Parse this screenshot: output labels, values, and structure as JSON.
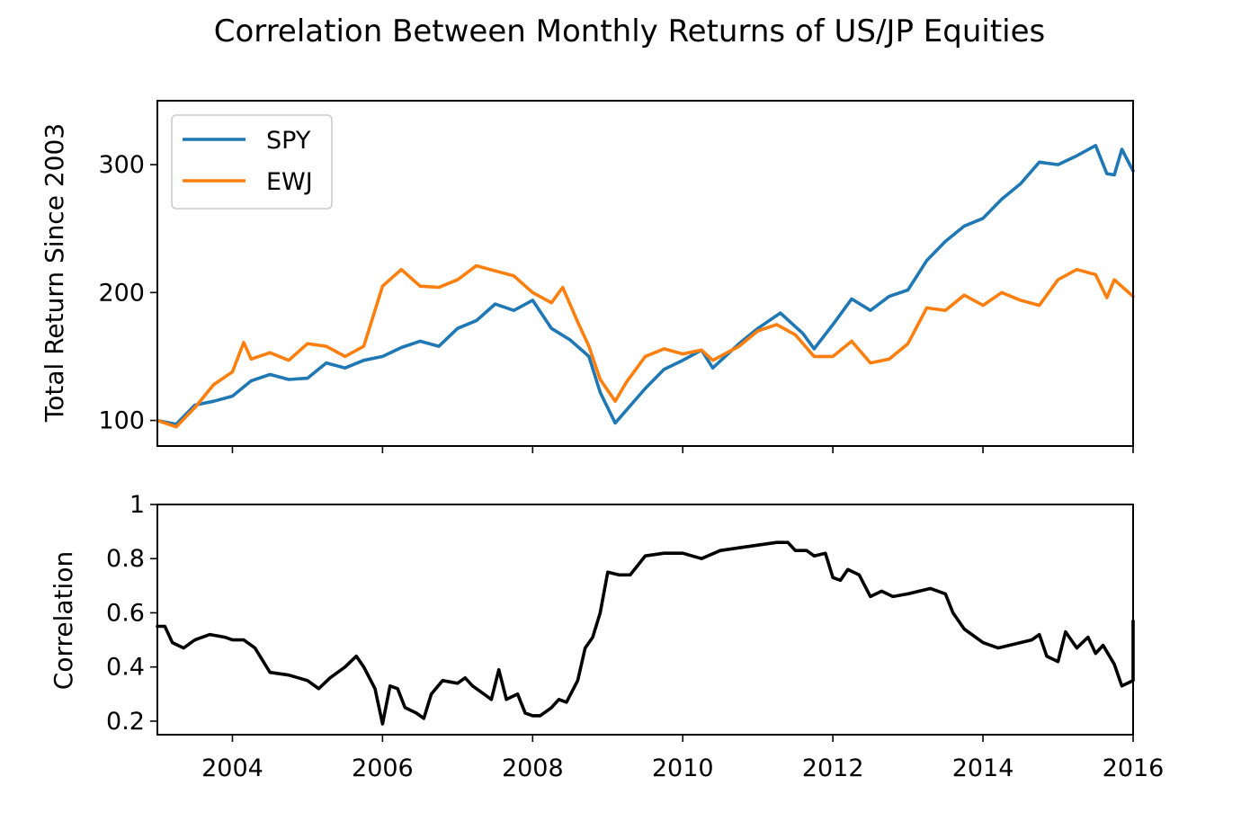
{
  "figure": {
    "title": "Correlation Between Monthly Returns of US/JP Equities"
  },
  "chart_data": [
    {
      "type": "line",
      "ylabel": "Total Return Since 2003",
      "xlabel": "",
      "xlim": [
        2003.0,
        2016.0
      ],
      "ylim": [
        80,
        350
      ],
      "yticks": [
        100,
        200,
        300
      ],
      "grid": false,
      "legend": {
        "placement": "top-left",
        "entries": [
          "SPY",
          "EWJ"
        ]
      },
      "series": [
        {
          "name": "SPY",
          "color": "#1f77b4",
          "points": [
            [
              2003.0,
              100
            ],
            [
              2003.25,
              97
            ],
            [
              2003.5,
              112
            ],
            [
              2003.75,
              115
            ],
            [
              2004.0,
              119
            ],
            [
              2004.25,
              131
            ],
            [
              2004.5,
              136
            ],
            [
              2004.75,
              132
            ],
            [
              2005.0,
              133
            ],
            [
              2005.25,
              145
            ],
            [
              2005.5,
              141
            ],
            [
              2005.75,
              147
            ],
            [
              2006.0,
              150
            ],
            [
              2006.25,
              157
            ],
            [
              2006.5,
              162
            ],
            [
              2006.75,
              158
            ],
            [
              2007.0,
              172
            ],
            [
              2007.25,
              178
            ],
            [
              2007.5,
              191
            ],
            [
              2007.75,
              186
            ],
            [
              2008.0,
              194
            ],
            [
              2008.25,
              172
            ],
            [
              2008.5,
              163
            ],
            [
              2008.75,
              150
            ],
            [
              2008.9,
              122
            ],
            [
              2009.1,
              98
            ],
            [
              2009.5,
              125
            ],
            [
              2009.75,
              140
            ],
            [
              2010.0,
              147
            ],
            [
              2010.25,
              155
            ],
            [
              2010.4,
              141
            ],
            [
              2010.75,
              160
            ],
            [
              2011.0,
              172
            ],
            [
              2011.3,
              184
            ],
            [
              2011.6,
              168
            ],
            [
              2011.75,
              156
            ],
            [
              2012.0,
              175
            ],
            [
              2012.25,
              195
            ],
            [
              2012.5,
              186
            ],
            [
              2012.75,
              197
            ],
            [
              2013.0,
              202
            ],
            [
              2013.25,
              225
            ],
            [
              2013.5,
              240
            ],
            [
              2013.75,
              252
            ],
            [
              2014.0,
              258
            ],
            [
              2014.25,
              273
            ],
            [
              2014.5,
              285
            ],
            [
              2014.75,
              302
            ],
            [
              2015.0,
              300
            ],
            [
              2015.25,
              307
            ],
            [
              2015.5,
              315
            ],
            [
              2015.65,
              293
            ],
            [
              2015.75,
              292
            ],
            [
              2015.85,
              312
            ],
            [
              2016.0,
              295
            ]
          ]
        },
        {
          "name": "EWJ",
          "color": "#ff7f0e",
          "points": [
            [
              2003.0,
              100
            ],
            [
              2003.25,
              95
            ],
            [
              2003.5,
              110
            ],
            [
              2003.75,
              128
            ],
            [
              2004.0,
              138
            ],
            [
              2004.15,
              161
            ],
            [
              2004.25,
              148
            ],
            [
              2004.5,
              153
            ],
            [
              2004.75,
              147
            ],
            [
              2005.0,
              160
            ],
            [
              2005.25,
              158
            ],
            [
              2005.5,
              150
            ],
            [
              2005.75,
              158
            ],
            [
              2006.0,
              205
            ],
            [
              2006.25,
              218
            ],
            [
              2006.5,
              205
            ],
            [
              2006.75,
              204
            ],
            [
              2007.0,
              210
            ],
            [
              2007.25,
              221
            ],
            [
              2007.5,
              217
            ],
            [
              2007.75,
              213
            ],
            [
              2008.0,
              200
            ],
            [
              2008.25,
              192
            ],
            [
              2008.4,
              204
            ],
            [
              2008.6,
              177
            ],
            [
              2008.75,
              158
            ],
            [
              2008.9,
              132
            ],
            [
              2009.1,
              115
            ],
            [
              2009.25,
              130
            ],
            [
              2009.5,
              150
            ],
            [
              2009.75,
              156
            ],
            [
              2010.0,
              152
            ],
            [
              2010.25,
              155
            ],
            [
              2010.4,
              147
            ],
            [
              2010.75,
              158
            ],
            [
              2011.0,
              170
            ],
            [
              2011.25,
              175
            ],
            [
              2011.5,
              167
            ],
            [
              2011.75,
              150
            ],
            [
              2012.0,
              150
            ],
            [
              2012.25,
              162
            ],
            [
              2012.5,
              145
            ],
            [
              2012.75,
              148
            ],
            [
              2013.0,
              160
            ],
            [
              2013.25,
              188
            ],
            [
              2013.5,
              186
            ],
            [
              2013.75,
              198
            ],
            [
              2014.0,
              190
            ],
            [
              2014.25,
              200
            ],
            [
              2014.5,
              194
            ],
            [
              2014.75,
              190
            ],
            [
              2015.0,
              210
            ],
            [
              2015.25,
              218
            ],
            [
              2015.5,
              214
            ],
            [
              2015.65,
              196
            ],
            [
              2015.75,
              210
            ],
            [
              2016.0,
              197
            ]
          ]
        }
      ]
    },
    {
      "type": "line",
      "ylabel": "Correlation",
      "xlabel": "",
      "xlim": [
        2003.0,
        2016.0
      ],
      "ylim": [
        0.15,
        1.0
      ],
      "yticks": [
        0.2,
        0.4,
        0.6,
        0.8,
        1.0
      ],
      "xticks": [
        2004,
        2006,
        2008,
        2010,
        2012,
        2014,
        2016
      ],
      "grid": false,
      "series": [
        {
          "color": "#000000",
          "points": [
            [
              2003.0,
              0.55
            ],
            [
              2003.1,
              0.55
            ],
            [
              2003.2,
              0.49
            ],
            [
              2003.35,
              0.47
            ],
            [
              2003.5,
              0.5
            ],
            [
              2003.7,
              0.52
            ],
            [
              2003.9,
              0.51
            ],
            [
              2004.0,
              0.5
            ],
            [
              2004.15,
              0.5
            ],
            [
              2004.3,
              0.47
            ],
            [
              2004.5,
              0.38
            ],
            [
              2004.75,
              0.37
            ],
            [
              2005.0,
              0.35
            ],
            [
              2005.15,
              0.32
            ],
            [
              2005.3,
              0.36
            ],
            [
              2005.5,
              0.4
            ],
            [
              2005.65,
              0.44
            ],
            [
              2005.75,
              0.4
            ],
            [
              2005.9,
              0.32
            ],
            [
              2006.0,
              0.19
            ],
            [
              2006.1,
              0.33
            ],
            [
              2006.2,
              0.32
            ],
            [
              2006.3,
              0.25
            ],
            [
              2006.45,
              0.23
            ],
            [
              2006.55,
              0.21
            ],
            [
              2006.65,
              0.3
            ],
            [
              2006.8,
              0.35
            ],
            [
              2007.0,
              0.34
            ],
            [
              2007.1,
              0.36
            ],
            [
              2007.2,
              0.33
            ],
            [
              2007.35,
              0.3
            ],
            [
              2007.45,
              0.28
            ],
            [
              2007.55,
              0.39
            ],
            [
              2007.65,
              0.28
            ],
            [
              2007.8,
              0.3
            ],
            [
              2007.9,
              0.23
            ],
            [
              2008.0,
              0.22
            ],
            [
              2008.1,
              0.22
            ],
            [
              2008.25,
              0.25
            ],
            [
              2008.35,
              0.28
            ],
            [
              2008.45,
              0.27
            ],
            [
              2008.6,
              0.35
            ],
            [
              2008.7,
              0.47
            ],
            [
              2008.8,
              0.51
            ],
            [
              2008.9,
              0.6
            ],
            [
              2009.0,
              0.75
            ],
            [
              2009.15,
              0.74
            ],
            [
              2009.3,
              0.74
            ],
            [
              2009.5,
              0.81
            ],
            [
              2009.75,
              0.82
            ],
            [
              2010.0,
              0.82
            ],
            [
              2010.25,
              0.8
            ],
            [
              2010.5,
              0.83
            ],
            [
              2010.75,
              0.84
            ],
            [
              2011.0,
              0.85
            ],
            [
              2011.25,
              0.86
            ],
            [
              2011.4,
              0.86
            ],
            [
              2011.5,
              0.83
            ],
            [
              2011.65,
              0.83
            ],
            [
              2011.75,
              0.81
            ],
            [
              2011.9,
              0.82
            ],
            [
              2012.0,
              0.73
            ],
            [
              2012.1,
              0.72
            ],
            [
              2012.2,
              0.76
            ],
            [
              2012.35,
              0.74
            ],
            [
              2012.5,
              0.66
            ],
            [
              2012.65,
              0.68
            ],
            [
              2012.8,
              0.66
            ],
            [
              2013.0,
              0.67
            ],
            [
              2013.15,
              0.68
            ],
            [
              2013.3,
              0.69
            ],
            [
              2013.5,
              0.67
            ],
            [
              2013.6,
              0.6
            ],
            [
              2013.75,
              0.54
            ],
            [
              2014.0,
              0.49
            ],
            [
              2014.2,
              0.47
            ],
            [
              2014.35,
              0.48
            ],
            [
              2014.5,
              0.49
            ],
            [
              2014.65,
              0.5
            ],
            [
              2014.75,
              0.52
            ],
            [
              2014.85,
              0.44
            ],
            [
              2015.0,
              0.42
            ],
            [
              2015.1,
              0.53
            ],
            [
              2015.25,
              0.47
            ],
            [
              2015.4,
              0.51
            ],
            [
              2015.5,
              0.45
            ],
            [
              2015.6,
              0.48
            ],
            [
              2015.75,
              0.41
            ],
            [
              2015.85,
              0.33
            ],
            [
              2016.0,
              0.35
            ],
            [
              2016.15,
              0.52
            ],
            [
              2016.3,
              0.55
            ],
            [
              2016.45,
              0.57
            ]
          ]
        }
      ]
    }
  ]
}
